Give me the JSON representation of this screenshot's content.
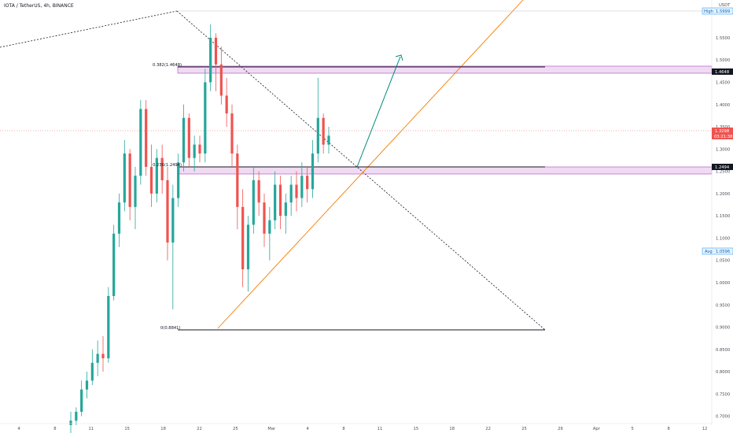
{
  "header": {
    "symbol": "IOTA / TetherUS",
    "interval": "4h",
    "exchange": "BINANCE"
  },
  "colors": {
    "up": "#26a69a",
    "down": "#ef5350",
    "accent": "#2196f3",
    "zone": "#e1bee7",
    "trend": "#f57c00",
    "arrow": "#00897b"
  },
  "price_axis": {
    "currency": "USDT",
    "ticks": [
      "1.5500",
      "1.5000",
      "1.4500",
      "1.4000",
      "1.3500",
      "1.3000",
      "1.2500",
      "1.2000",
      "1.1500",
      "1.1000",
      "1.0500",
      "1.0000",
      "0.9500",
      "0.9000",
      "0.8500",
      "0.8000",
      "0.7500",
      "0.7000"
    ],
    "high_label": "High",
    "high_value": "1.5999",
    "avg_label": "Avg",
    "avg_value": "1.0596",
    "level_1": "1.4648",
    "level_2": "1.2494",
    "last_price": "1.3298",
    "countdown": "03:21:38"
  },
  "time_axis": {
    "ticks": [
      "4",
      "8",
      "11",
      "15",
      "18",
      "22",
      "25",
      "Mar",
      "4",
      "8",
      "11",
      "15",
      "18",
      "22",
      "25",
      "29",
      "Apr",
      "5",
      "8",
      "12"
    ]
  },
  "fib_labels": {
    "f382": "0.382(1.4648)",
    "f236": "0.236(1.2494)",
    "f0": "0(0.8841)"
  },
  "chart_data": {
    "type": "candlestick",
    "ylim": [
      0.68,
      1.61
    ],
    "x_categories": [
      "4",
      "8",
      "11",
      "15",
      "18",
      "22",
      "25",
      "Mar",
      "4",
      "8",
      "11",
      "15",
      "18",
      "22",
      "25",
      "29",
      "Apr",
      "5",
      "8",
      "12"
    ],
    "candles": [
      [
        0.68,
        0.71,
        0.66,
        0.69
      ],
      [
        0.69,
        0.72,
        0.68,
        0.71
      ],
      [
        0.71,
        0.78,
        0.7,
        0.76
      ],
      [
        0.76,
        0.8,
        0.74,
        0.78
      ],
      [
        0.78,
        0.85,
        0.77,
        0.82
      ],
      [
        0.82,
        0.87,
        0.79,
        0.84
      ],
      [
        0.84,
        0.88,
        0.8,
        0.83
      ],
      [
        0.83,
        0.99,
        0.82,
        0.97
      ],
      [
        0.97,
        1.13,
        0.96,
        1.11
      ],
      [
        1.11,
        1.2,
        1.08,
        1.18
      ],
      [
        1.18,
        1.32,
        1.16,
        1.29
      ],
      [
        1.29,
        1.3,
        1.14,
        1.17
      ],
      [
        1.17,
        1.26,
        1.12,
        1.24
      ],
      [
        1.24,
        1.41,
        1.22,
        1.39
      ],
      [
        1.39,
        1.41,
        1.24,
        1.26
      ],
      [
        1.26,
        1.31,
        1.17,
        1.2
      ],
      [
        1.2,
        1.3,
        1.18,
        1.28
      ],
      [
        1.28,
        1.31,
        1.2,
        1.23
      ],
      [
        1.23,
        1.26,
        1.05,
        1.09
      ],
      [
        1.09,
        1.22,
        0.94,
        1.19
      ],
      [
        1.19,
        1.29,
        1.17,
        1.27
      ],
      [
        1.27,
        1.4,
        1.25,
        1.37
      ],
      [
        1.37,
        1.38,
        1.26,
        1.28
      ],
      [
        1.28,
        1.33,
        1.25,
        1.31
      ],
      [
        1.31,
        1.33,
        1.27,
        1.29
      ],
      [
        1.29,
        1.48,
        1.27,
        1.45
      ],
      [
        1.45,
        1.58,
        1.43,
        1.55
      ],
      [
        1.55,
        1.56,
        1.43,
        1.49
      ],
      [
        1.49,
        1.53,
        1.4,
        1.42
      ],
      [
        1.42,
        1.46,
        1.35,
        1.38
      ],
      [
        1.38,
        1.4,
        1.26,
        1.29
      ],
      [
        1.29,
        1.31,
        1.12,
        1.17
      ],
      [
        1.17,
        1.21,
        0.99,
        1.03
      ],
      [
        1.03,
        1.15,
        0.98,
        1.13
      ],
      [
        1.13,
        1.26,
        1.11,
        1.23
      ],
      [
        1.23,
        1.25,
        1.15,
        1.18
      ],
      [
        1.18,
        1.2,
        1.08,
        1.11
      ],
      [
        1.11,
        1.17,
        1.05,
        1.14
      ],
      [
        1.14,
        1.25,
        1.12,
        1.22
      ],
      [
        1.22,
        1.24,
        1.12,
        1.15
      ],
      [
        1.15,
        1.2,
        1.11,
        1.18
      ],
      [
        1.18,
        1.24,
        1.15,
        1.22
      ],
      [
        1.22,
        1.25,
        1.16,
        1.19
      ],
      [
        1.19,
        1.27,
        1.17,
        1.24
      ],
      [
        1.24,
        1.26,
        1.18,
        1.21
      ],
      [
        1.21,
        1.32,
        1.19,
        1.29
      ],
      [
        1.29,
        1.46,
        1.27,
        1.37
      ],
      [
        1.37,
        1.38,
        1.29,
        1.31
      ],
      [
        1.31,
        1.35,
        1.29,
        1.33
      ]
    ],
    "annotations": [
      {
        "type": "fib_level",
        "ratio": "0.382",
        "price": 1.4648
      },
      {
        "type": "fib_level",
        "ratio": "0.236",
        "price": 1.2494
      },
      {
        "type": "fib_level",
        "ratio": "0",
        "price": 0.8841
      }
    ]
  }
}
